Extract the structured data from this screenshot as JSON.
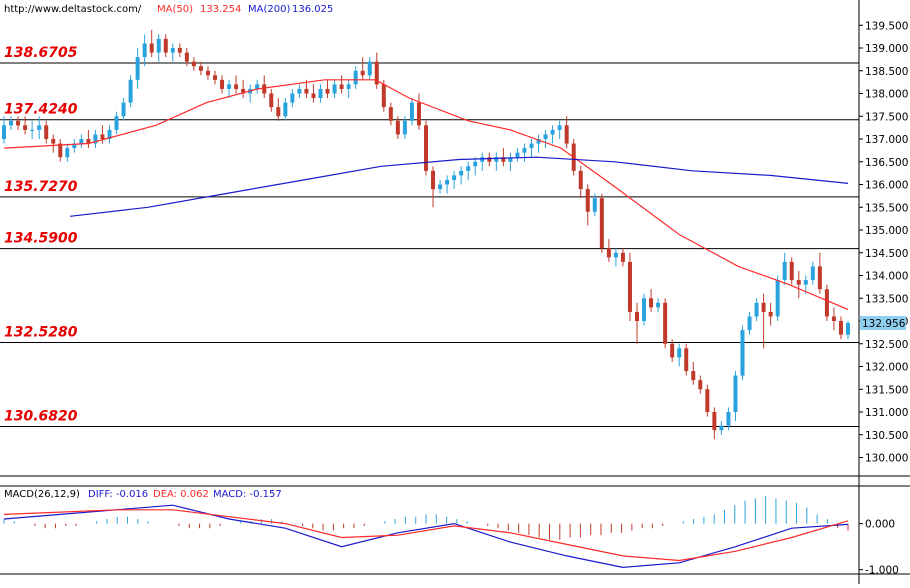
{
  "header": {
    "url": "http://www.deltastock.com/",
    "ma50_label": "MA(50)",
    "ma50_value": "133.254",
    "ma200_label": "MA(200)",
    "ma200_value": "136.025"
  },
  "colors": {
    "up": "#29a3dd",
    "down": "#c0392b",
    "ma50": "#ff2a2a",
    "ma200": "#1a1acc",
    "level_text": "#e60000",
    "level_line": "#000000",
    "diff": "#1a1acc",
    "dea": "#ff2a2a",
    "price_tag_bg": "#8fd0f0"
  },
  "price_axis": {
    "ticks": [
      "139.500",
      "139.000",
      "138.500",
      "138.000",
      "137.500",
      "137.000",
      "136.500",
      "136.000",
      "135.500",
      "135.000",
      "134.500",
      "134.000",
      "133.500",
      "133.000",
      "132.500",
      "132.000",
      "131.500",
      "131.000",
      "130.500",
      "130.000"
    ],
    "current": "132.956"
  },
  "levels": [
    "138.6705",
    "137.4240",
    "135.7270",
    "134.5900",
    "132.5280",
    "130.6820"
  ],
  "macd": {
    "title": "MACD(26,12,9)",
    "diff_label": "DIFF: -0.016",
    "dea_label": "DEA: 0.062",
    "macd_label": "MACD: -0.157",
    "ticks": [
      "0.000",
      "-1.000"
    ]
  },
  "chart_data": {
    "type": "candlestick",
    "ylim": [
      129.5,
      139.8
    ],
    "grid": false,
    "horizontal_levels": [
      138.6705,
      137.424,
      135.727,
      134.59,
      132.528,
      130.682
    ],
    "candles_ohlc": [
      [
        137.0,
        137.5,
        136.9,
        137.3
      ],
      [
        137.3,
        137.5,
        137.2,
        137.4
      ],
      [
        137.4,
        137.5,
        137.2,
        137.3
      ],
      [
        137.3,
        137.5,
        137.1,
        137.2
      ],
      [
        137.2,
        137.4,
        137.0,
        137.2
      ],
      [
        137.2,
        137.5,
        137.0,
        137.3
      ],
      [
        137.3,
        137.4,
        136.9,
        137.0
      ],
      [
        137.0,
        137.1,
        136.7,
        136.9
      ],
      [
        136.9,
        137.0,
        136.5,
        136.6
      ],
      [
        136.6,
        136.9,
        136.5,
        136.8
      ],
      [
        136.8,
        137.0,
        136.7,
        136.9
      ],
      [
        136.9,
        137.1,
        136.8,
        137.0
      ],
      [
        137.0,
        137.2,
        136.8,
        136.9
      ],
      [
        136.9,
        137.2,
        136.8,
        137.1
      ],
      [
        137.1,
        137.3,
        136.9,
        137.0
      ],
      [
        137.0,
        137.3,
        136.9,
        137.2
      ],
      [
        137.2,
        137.6,
        137.1,
        137.5
      ],
      [
        137.5,
        137.9,
        137.4,
        137.8
      ],
      [
        137.8,
        138.4,
        137.7,
        138.3
      ],
      [
        138.3,
        139.0,
        138.1,
        138.8
      ],
      [
        138.8,
        139.3,
        138.6,
        139.1
      ],
      [
        139.1,
        139.4,
        138.8,
        138.9
      ],
      [
        138.9,
        139.3,
        138.7,
        139.2
      ],
      [
        139.2,
        139.3,
        138.8,
        138.9
      ],
      [
        138.9,
        139.1,
        138.7,
        139.0
      ],
      [
        139.0,
        139.1,
        138.8,
        138.9
      ],
      [
        138.9,
        139.0,
        138.6,
        138.7
      ],
      [
        138.7,
        138.8,
        138.5,
        138.6
      ],
      [
        138.6,
        138.7,
        138.4,
        138.5
      ],
      [
        138.5,
        138.6,
        138.3,
        138.4
      ],
      [
        138.4,
        138.5,
        138.2,
        138.3
      ],
      [
        138.3,
        138.4,
        138.0,
        138.1
      ],
      [
        138.1,
        138.3,
        137.9,
        138.2
      ],
      [
        138.2,
        138.4,
        138.0,
        138.1
      ],
      [
        138.1,
        138.3,
        137.9,
        138.0
      ],
      [
        138.0,
        138.2,
        137.8,
        138.1
      ],
      [
        138.1,
        138.3,
        138.0,
        138.2
      ],
      [
        138.2,
        138.4,
        137.9,
        138.0
      ],
      [
        138.0,
        138.1,
        137.6,
        137.7
      ],
      [
        137.7,
        137.9,
        137.4,
        137.5
      ],
      [
        137.5,
        137.9,
        137.4,
        137.8
      ],
      [
        137.8,
        138.1,
        137.7,
        138.0
      ],
      [
        138.0,
        138.2,
        137.9,
        138.1
      ],
      [
        138.1,
        138.3,
        137.9,
        138.0
      ],
      [
        138.0,
        138.2,
        137.8,
        137.9
      ],
      [
        137.9,
        138.2,
        137.8,
        138.1
      ],
      [
        138.1,
        138.3,
        137.9,
        138.0
      ],
      [
        138.0,
        138.3,
        137.9,
        138.2
      ],
      [
        138.2,
        138.4,
        138.0,
        138.1
      ],
      [
        138.1,
        138.3,
        137.9,
        138.2
      ],
      [
        138.2,
        138.6,
        138.1,
        138.5
      ],
      [
        138.5,
        138.8,
        138.3,
        138.4
      ],
      [
        138.4,
        138.8,
        138.3,
        138.7
      ],
      [
        138.7,
        138.9,
        138.1,
        138.2
      ],
      [
        138.2,
        138.3,
        137.6,
        137.7
      ],
      [
        137.7,
        137.8,
        137.3,
        137.4
      ],
      [
        137.4,
        137.5,
        137.0,
        137.1
      ],
      [
        137.1,
        137.5,
        137.0,
        137.4
      ],
      [
        137.4,
        137.9,
        137.3,
        137.8
      ],
      [
        137.8,
        138.0,
        137.2,
        137.3
      ],
      [
        137.3,
        137.4,
        136.2,
        136.3
      ],
      [
        136.3,
        136.4,
        135.5,
        135.9
      ],
      [
        135.9,
        136.1,
        135.8,
        136.0
      ],
      [
        136.0,
        136.2,
        135.8,
        136.1
      ],
      [
        136.1,
        136.3,
        135.9,
        136.2
      ],
      [
        136.2,
        136.4,
        136.0,
        136.3
      ],
      [
        136.3,
        136.5,
        136.1,
        136.4
      ],
      [
        136.4,
        136.6,
        136.2,
        136.5
      ],
      [
        136.5,
        136.7,
        136.3,
        136.6
      ],
      [
        136.6,
        136.7,
        136.4,
        136.5
      ],
      [
        136.5,
        136.7,
        136.3,
        136.6
      ],
      [
        136.6,
        136.8,
        136.4,
        136.5
      ],
      [
        136.5,
        136.7,
        136.3,
        136.6
      ],
      [
        136.6,
        136.8,
        136.5,
        136.7
      ],
      [
        136.7,
        136.9,
        136.5,
        136.8
      ],
      [
        136.8,
        137.0,
        136.6,
        136.9
      ],
      [
        136.9,
        137.1,
        136.7,
        137.0
      ],
      [
        137.0,
        137.2,
        136.8,
        137.1
      ],
      [
        137.1,
        137.3,
        136.9,
        137.2
      ],
      [
        137.2,
        137.4,
        137.0,
        137.3
      ],
      [
        137.3,
        137.5,
        136.8,
        136.9
      ],
      [
        136.9,
        137.0,
        136.2,
        136.3
      ],
      [
        136.3,
        136.4,
        135.7,
        135.9
      ],
      [
        135.9,
        136.0,
        135.1,
        135.4
      ],
      [
        135.4,
        135.8,
        135.3,
        135.7
      ],
      [
        135.7,
        135.8,
        134.5,
        134.6
      ],
      [
        134.6,
        134.8,
        134.3,
        134.4
      ],
      [
        134.4,
        134.6,
        134.2,
        134.5
      ],
      [
        134.5,
        134.6,
        134.2,
        134.3
      ],
      [
        134.3,
        134.5,
        133.0,
        133.2
      ],
      [
        133.2,
        133.4,
        132.5,
        133.0
      ],
      [
        133.0,
        133.6,
        132.9,
        133.5
      ],
      [
        133.5,
        133.7,
        133.2,
        133.3
      ],
      [
        133.3,
        133.5,
        133.2,
        133.4
      ],
      [
        133.4,
        133.5,
        132.4,
        132.5
      ],
      [
        132.5,
        132.6,
        132.1,
        132.2
      ],
      [
        132.2,
        132.5,
        132.0,
        132.4
      ],
      [
        132.4,
        132.5,
        131.8,
        131.9
      ],
      [
        131.9,
        132.1,
        131.6,
        131.7
      ],
      [
        131.7,
        131.8,
        131.4,
        131.5
      ],
      [
        131.5,
        131.6,
        130.9,
        131.0
      ],
      [
        131.0,
        131.1,
        130.4,
        130.6
      ],
      [
        130.6,
        130.8,
        130.5,
        130.7
      ],
      [
        130.7,
        131.1,
        130.6,
        131.0
      ],
      [
        131.0,
        131.9,
        130.8,
        131.8
      ],
      [
        131.8,
        132.9,
        131.7,
        132.8
      ],
      [
        132.8,
        133.2,
        132.7,
        133.1
      ],
      [
        133.1,
        133.5,
        133.0,
        133.4
      ],
      [
        133.4,
        133.6,
        132.4,
        133.2
      ],
      [
        133.2,
        133.4,
        132.9,
        133.1
      ],
      [
        133.1,
        134.0,
        133.0,
        133.9
      ],
      [
        133.9,
        134.5,
        133.8,
        134.3
      ],
      [
        134.3,
        134.4,
        133.8,
        133.9
      ],
      [
        133.9,
        134.1,
        133.5,
        133.8
      ],
      [
        133.8,
        134.0,
        133.6,
        133.9
      ],
      [
        133.9,
        134.3,
        133.8,
        134.2
      ],
      [
        134.2,
        134.5,
        133.6,
        133.7
      ],
      [
        133.7,
        133.8,
        133.0,
        133.1
      ],
      [
        133.1,
        133.3,
        132.8,
        133.0
      ],
      [
        133.0,
        133.1,
        132.6,
        132.7
      ],
      [
        132.7,
        133.0,
        132.6,
        132.956
      ]
    ],
    "ma50": [
      [
        0.0,
        136.8
      ],
      [
        0.1,
        136.9
      ],
      [
        0.18,
        137.3
      ],
      [
        0.24,
        137.8
      ],
      [
        0.3,
        138.1
      ],
      [
        0.38,
        138.3
      ],
      [
        0.44,
        138.3
      ],
      [
        0.48,
        137.9
      ],
      [
        0.55,
        137.4
      ],
      [
        0.6,
        137.2
      ],
      [
        0.66,
        136.8
      ],
      [
        0.72,
        136.0
      ],
      [
        0.8,
        134.9
      ],
      [
        0.87,
        134.2
      ],
      [
        0.93,
        133.8
      ],
      [
        1.0,
        133.254
      ]
    ],
    "ma200": [
      [
        0.0,
        135.3
      ],
      [
        0.1,
        135.5
      ],
      [
        0.2,
        135.8
      ],
      [
        0.3,
        136.1
      ],
      [
        0.4,
        136.4
      ],
      [
        0.5,
        136.55
      ],
      [
        0.6,
        136.6
      ],
      [
        0.7,
        136.5
      ],
      [
        0.8,
        136.3
      ],
      [
        0.9,
        136.2
      ],
      [
        1.0,
        136.025
      ]
    ],
    "macd_histogram": [
      0.1,
      0.05,
      0.0,
      -0.05,
      -0.1,
      -0.1,
      -0.05,
      -0.05,
      0.0,
      0.05,
      0.1,
      0.15,
      0.15,
      0.1,
      0.05,
      0.0,
      0.0,
      -0.05,
      -0.1,
      -0.1,
      -0.1,
      -0.05,
      0.0,
      0.05,
      0.05,
      0.1,
      0.1,
      0.05,
      0.0,
      -0.05,
      -0.1,
      -0.15,
      -0.15,
      -0.1,
      -0.1,
      -0.05,
      0.0,
      0.05,
      0.1,
      0.15,
      0.15,
      0.2,
      0.2,
      0.15,
      0.1,
      0.05,
      0.0,
      -0.05,
      -0.1,
      -0.15,
      -0.2,
      -0.25,
      -0.3,
      -0.35,
      -0.35,
      -0.3,
      -0.3,
      -0.25,
      -0.25,
      -0.2,
      -0.2,
      -0.15,
      -0.1,
      -0.1,
      -0.05,
      0.0,
      0.05,
      0.1,
      0.15,
      0.2,
      0.3,
      0.4,
      0.5,
      0.55,
      0.6,
      0.55,
      0.5,
      0.45,
      0.35,
      0.2,
      0.1,
      -0.1,
      -0.15
    ],
    "macd_diff": [
      0.1,
      0.2,
      0.3,
      0.4,
      0.1,
      -0.1,
      -0.5,
      -0.2,
      0.0,
      -0.4,
      -0.7,
      -0.95,
      -0.85,
      -0.5,
      -0.1,
      -0.016
    ],
    "macd_dea": [
      0.2,
      0.25,
      0.3,
      0.3,
      0.15,
      0.0,
      -0.3,
      -0.25,
      -0.05,
      -0.2,
      -0.45,
      -0.7,
      -0.8,
      -0.6,
      -0.3,
      0.062
    ],
    "macd_ylim": [
      -1.05,
      0.6
    ]
  }
}
